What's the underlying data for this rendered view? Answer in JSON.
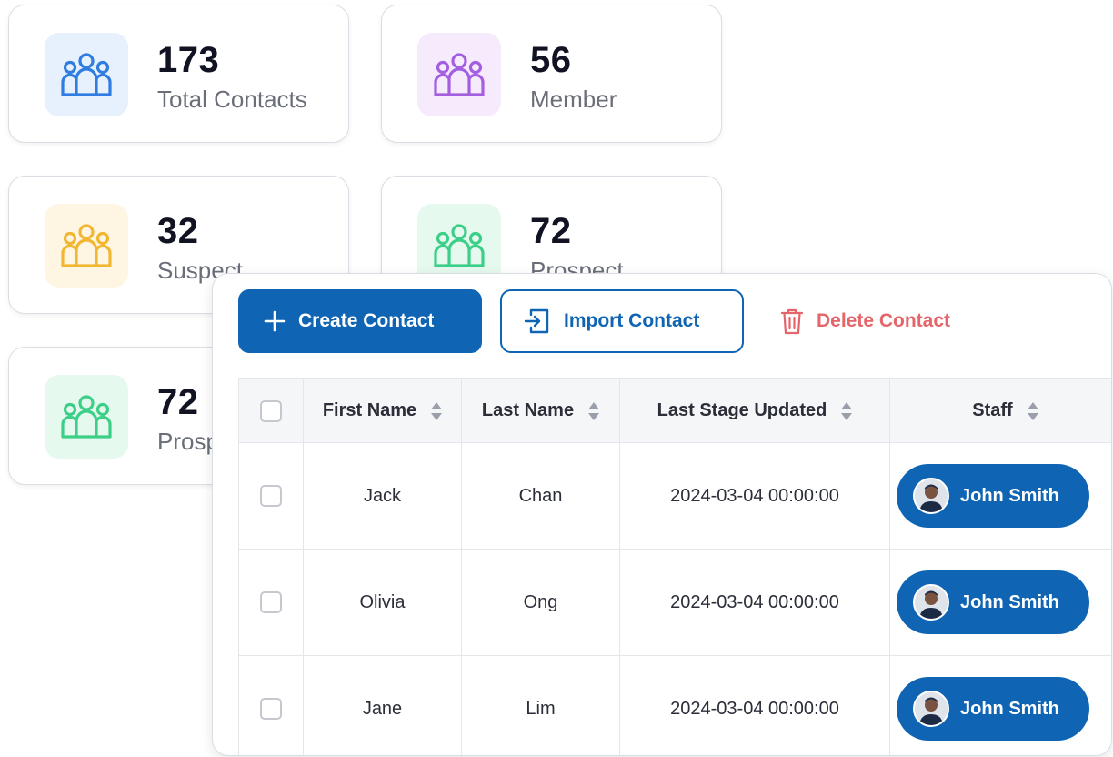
{
  "stats": [
    {
      "value": "173",
      "label": "Total Contacts",
      "icon": "users-icon",
      "color": "#2f7de1",
      "bg": "#e7f0fd"
    },
    {
      "value": "56",
      "label": "Member",
      "icon": "users-icon",
      "color": "#a45ee0",
      "bg": "#f5ebfd"
    },
    {
      "value": "32",
      "label": "Suspect",
      "icon": "users-icon",
      "color": "#f2b731",
      "bg": "#fef5e2"
    },
    {
      "value": "72",
      "label": "Prospect",
      "icon": "users-icon",
      "color": "#3ccf88",
      "bg": "#e6f9ef"
    },
    {
      "value": "72",
      "label": "Prospect",
      "icon": "users-icon",
      "color": "#3ccf88",
      "bg": "#e6f9ef"
    }
  ],
  "toolbar": {
    "create_label": "Create Contact",
    "import_label": "Import Contact",
    "delete_label": "Delete Contact"
  },
  "table": {
    "columns": [
      "First Name",
      "Last Name",
      "Last Stage Updated",
      "Staff"
    ],
    "rows": [
      {
        "first": "Jack",
        "last": "Chan",
        "updated": "2024-03-04 00:00:00",
        "staff": "John Smith"
      },
      {
        "first": "Olivia",
        "last": "Ong",
        "updated": "2024-03-04 00:00:00",
        "staff": "John Smith"
      },
      {
        "first": "Jane",
        "last": "Lim",
        "updated": "2024-03-04 00:00:00",
        "staff": "John Smith"
      }
    ]
  },
  "colors": {
    "primary": "#0f65b4",
    "danger": "#e5666a"
  }
}
